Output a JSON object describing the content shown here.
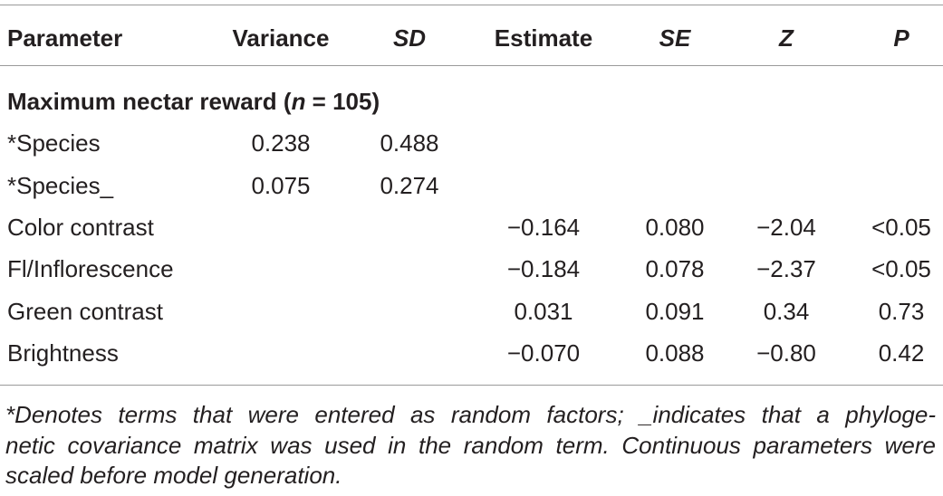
{
  "table": {
    "header": [
      "Parameter",
      "Variance",
      "SD",
      "Estimate",
      "SE",
      "Z",
      "P"
    ],
    "section": {
      "parts": [
        "Maximum nectar reward (",
        "n",
        " = 105)"
      ]
    },
    "rows": [
      [
        "*Species",
        "0.238",
        "0.488",
        null,
        null,
        null,
        null
      ],
      [
        "*Species_",
        "0.075",
        "0.274",
        null,
        null,
        null,
        null
      ],
      [
        "Color contrast",
        null,
        null,
        "−0.164",
        "0.080",
        "−2.04",
        "<0.05"
      ],
      [
        "Fl/Inflorescence",
        null,
        null,
        "−0.184",
        "0.078",
        "−2.37",
        "<0.05"
      ],
      [
        "Green contrast",
        null,
        null,
        "0.031",
        "0.091",
        "0.34",
        "0.73"
      ],
      [
        "Brightness",
        null,
        null,
        "−0.070",
        "0.088",
        "−0.80",
        "0.42"
      ]
    ]
  },
  "footnote": {
    "lines": [
      "*Denotes terms that were entered as random factors; _indicates that a phyloge-",
      "netic covariance matrix was used in the random term. Continuous parameters were",
      "scaled before model generation."
    ]
  }
}
